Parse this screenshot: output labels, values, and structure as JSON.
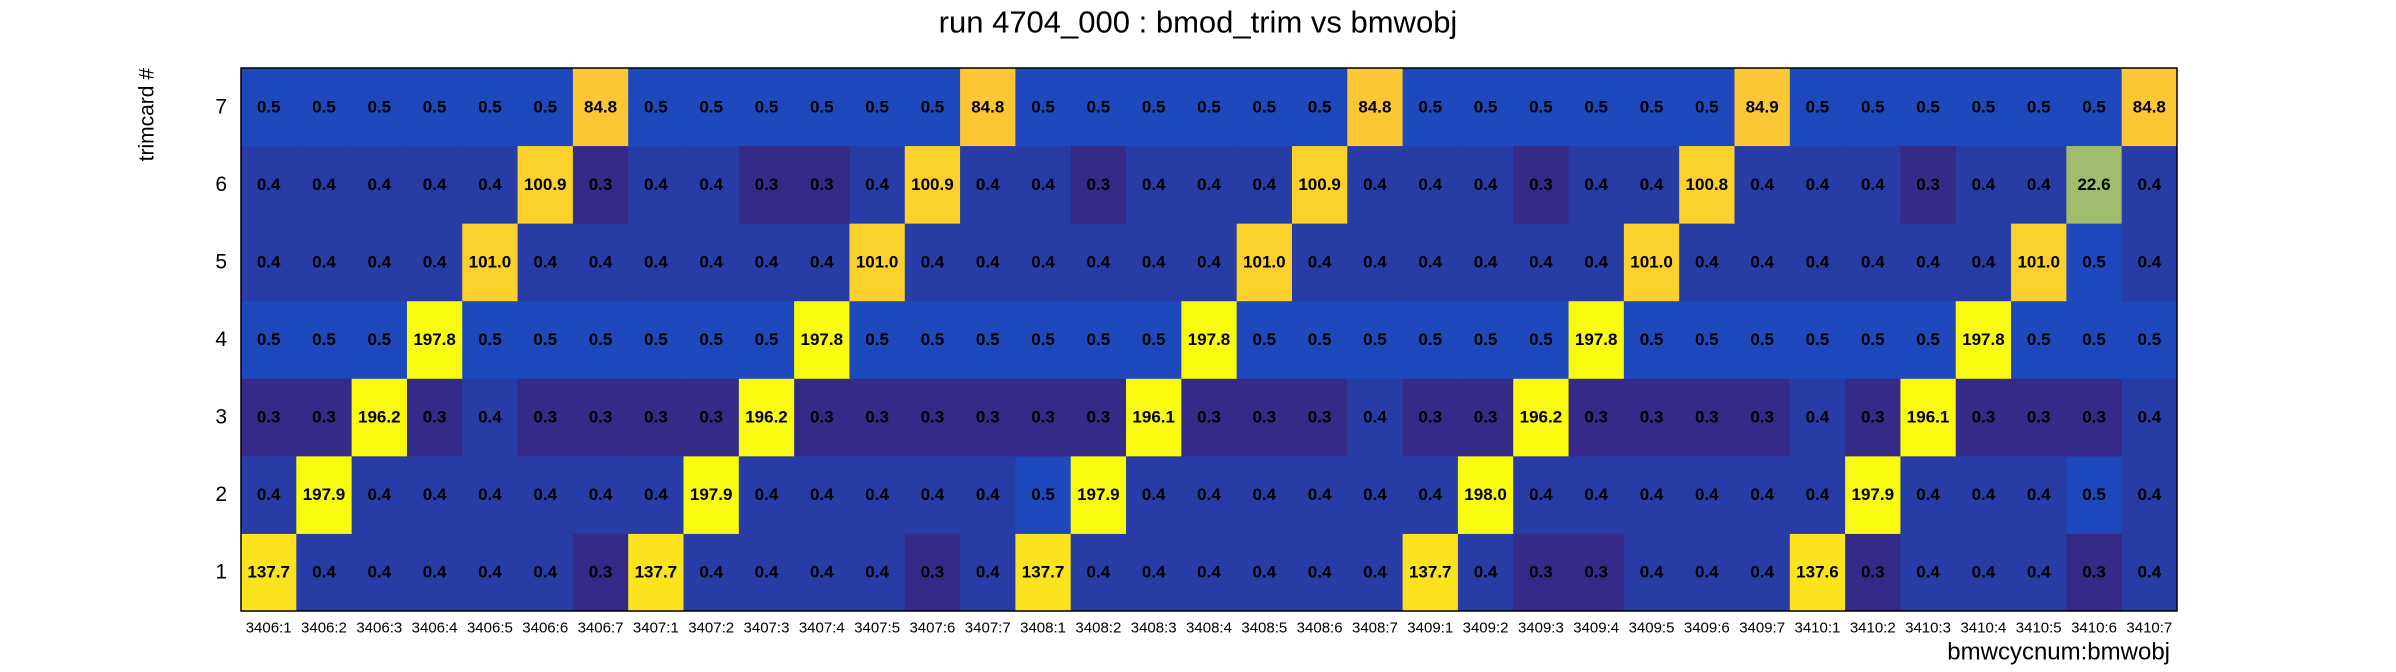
{
  "chart_data": {
    "type": "heatmap",
    "title": "run 4704_000 : bmod_trim vs bmwobj",
    "x_label": "bmwcycnum:bmwobj",
    "y_label": "trimcard #",
    "categories": [
      "3406:1",
      "3406:2",
      "3406:3",
      "3406:4",
      "3406:5",
      "3406:6",
      "3406:7",
      "3407:1",
      "3407:2",
      "3407:3",
      "3407:4",
      "3407:5",
      "3407:6",
      "3407:7",
      "3408:1",
      "3408:2",
      "3408:3",
      "3408:4",
      "3408:5",
      "3408:6",
      "3408:7",
      "3409:1",
      "3409:2",
      "3409:3",
      "3409:4",
      "3409:5",
      "3409:6",
      "3409:7",
      "3410:1",
      "3410:2",
      "3410:3",
      "3410:4",
      "3410:5",
      "3410:6",
      "3410:7"
    ],
    "y_categories": [
      "1",
      "2",
      "3",
      "4",
      "5",
      "6",
      "7"
    ],
    "values": [
      [
        137.7,
        0.4,
        0.4,
        0.4,
        0.4,
        0.4,
        0.3,
        137.7,
        0.4,
        0.4,
        0.4,
        0.4,
        0.3,
        0.4,
        137.7,
        0.4,
        0.4,
        0.4,
        0.4,
        0.4,
        0.4,
        137.7,
        0.4,
        0.3,
        0.3,
        0.4,
        0.4,
        0.4,
        137.6,
        0.3,
        0.4,
        0.4,
        0.4,
        0.3,
        0.4
      ],
      [
        0.4,
        197.9,
        0.4,
        0.4,
        0.4,
        0.4,
        0.4,
        0.4,
        197.9,
        0.4,
        0.4,
        0.4,
        0.4,
        0.4,
        0.5,
        197.9,
        0.4,
        0.4,
        0.4,
        0.4,
        0.4,
        0.4,
        198.0,
        0.4,
        0.4,
        0.4,
        0.4,
        0.4,
        0.4,
        197.9,
        0.4,
        0.4,
        0.4,
        0.5,
        0.4
      ],
      [
        0.3,
        0.3,
        196.2,
        0.3,
        0.4,
        0.3,
        0.3,
        0.3,
        0.3,
        196.2,
        0.3,
        0.3,
        0.3,
        0.3,
        0.3,
        0.3,
        196.1,
        0.3,
        0.3,
        0.3,
        0.4,
        0.3,
        0.3,
        196.2,
        0.3,
        0.3,
        0.3,
        0.3,
        0.4,
        0.3,
        196.1,
        0.3,
        0.3,
        0.3,
        0.4
      ],
      [
        0.5,
        0.5,
        0.5,
        197.8,
        0.5,
        0.5,
        0.5,
        0.5,
        0.5,
        0.5,
        197.8,
        0.5,
        0.5,
        0.5,
        0.5,
        0.5,
        0.5,
        197.8,
        0.5,
        0.5,
        0.5,
        0.5,
        0.5,
        0.5,
        197.8,
        0.5,
        0.5,
        0.5,
        0.5,
        0.5,
        0.5,
        197.8,
        0.5,
        0.5,
        0.5
      ],
      [
        0.4,
        0.4,
        0.4,
        0.4,
        101.0,
        0.4,
        0.4,
        0.4,
        0.4,
        0.4,
        0.4,
        101.0,
        0.4,
        0.4,
        0.4,
        0.4,
        0.4,
        0.4,
        101.0,
        0.4,
        0.4,
        0.4,
        0.4,
        0.4,
        0.4,
        101.0,
        0.4,
        0.4,
        0.4,
        0.4,
        0.4,
        0.4,
        101.0,
        0.5,
        0.4
      ],
      [
        0.4,
        0.4,
        0.4,
        0.4,
        0.4,
        100.9,
        0.3,
        0.4,
        0.4,
        0.3,
        0.3,
        0.4,
        100.9,
        0.4,
        0.4,
        0.3,
        0.4,
        0.4,
        0.4,
        100.9,
        0.4,
        0.4,
        0.4,
        0.3,
        0.4,
        0.4,
        100.8,
        0.4,
        0.4,
        0.4,
        0.3,
        0.4,
        0.4,
        22.6,
        0.4
      ],
      [
        0.5,
        0.5,
        0.5,
        0.5,
        0.5,
        0.5,
        84.8,
        0.5,
        0.5,
        0.5,
        0.5,
        0.5,
        0.5,
        84.8,
        0.5,
        0.5,
        0.5,
        0.5,
        0.5,
        0.5,
        84.8,
        0.5,
        0.5,
        0.5,
        0.5,
        0.5,
        0.5,
        84.9,
        0.5,
        0.5,
        0.5,
        0.5,
        0.5,
        0.5,
        84.8
      ]
    ],
    "value_labels": [
      [
        "137.7",
        "0.4",
        "0.4",
        "0.4",
        "0.4",
        "0.4",
        "0.3",
        "137.7",
        "0.4",
        "0.4",
        "0.4",
        "0.4",
        "0.3",
        "0.4",
        "137.7",
        "0.4",
        "0.4",
        "0.4",
        "0.4",
        "0.4",
        "0.4",
        "137.7",
        "0.4",
        "0.3",
        "0.3",
        "0.4",
        "0.4",
        "0.4",
        "137.6",
        "0.3",
        "0.4",
        "0.4",
        "0.4",
        "0.3",
        "0.4"
      ],
      [
        "0.4",
        "197.9",
        "0.4",
        "0.4",
        "0.4",
        "0.4",
        "0.4",
        "0.4",
        "197.9",
        "0.4",
        "0.4",
        "0.4",
        "0.4",
        "0.4",
        "0.5",
        "197.9",
        "0.4",
        "0.4",
        "0.4",
        "0.4",
        "0.4",
        "0.4",
        "198.0",
        "0.4",
        "0.4",
        "0.4",
        "0.4",
        "0.4",
        "0.4",
        "197.9",
        "0.4",
        "0.4",
        "0.4",
        "0.5",
        "0.4"
      ],
      [
        "0.3",
        "0.3",
        "196.2",
        "0.3",
        "0.4",
        "0.3",
        "0.3",
        "0.3",
        "0.3",
        "196.2",
        "0.3",
        "0.3",
        "0.3",
        "0.3",
        "0.3",
        "0.3",
        "196.1",
        "0.3",
        "0.3",
        "0.3",
        "0.4",
        "0.3",
        "0.3",
        "196.2",
        "0.3",
        "0.3",
        "0.3",
        "0.3",
        "0.4",
        "0.3",
        "196.1",
        "0.3",
        "0.3",
        "0.3",
        "0.4"
      ],
      [
        "0.5",
        "0.5",
        "0.5",
        "197.8",
        "0.5",
        "0.5",
        "0.5",
        "0.5",
        "0.5",
        "0.5",
        "197.8",
        "0.5",
        "0.5",
        "0.5",
        "0.5",
        "0.5",
        "0.5",
        "197.8",
        "0.5",
        "0.5",
        "0.5",
        "0.5",
        "0.5",
        "0.5",
        "197.8",
        "0.5",
        "0.5",
        "0.5",
        "0.5",
        "0.5",
        "0.5",
        "197.8",
        "0.5",
        "0.5",
        "0.5"
      ],
      [
        "0.4",
        "0.4",
        "0.4",
        "0.4",
        "101.0",
        "0.4",
        "0.4",
        "0.4",
        "0.4",
        "0.4",
        "0.4",
        "101.0",
        "0.4",
        "0.4",
        "0.4",
        "0.4",
        "0.4",
        "0.4",
        "101.0",
        "0.4",
        "0.4",
        "0.4",
        "0.4",
        "0.4",
        "0.4",
        "101.0",
        "0.4",
        "0.4",
        "0.4",
        "0.4",
        "0.4",
        "0.4",
        "101.0",
        "0.5",
        "0.4"
      ],
      [
        "0.4",
        "0.4",
        "0.4",
        "0.4",
        "0.4",
        "100.9",
        "0.3",
        "0.4",
        "0.4",
        "0.3",
        "0.3",
        "0.4",
        "100.9",
        "0.4",
        "0.4",
        "0.3",
        "0.4",
        "0.4",
        "0.4",
        "100.9",
        "0.4",
        "0.4",
        "0.4",
        "0.3",
        "0.4",
        "0.4",
        "100.8",
        "0.4",
        "0.4",
        "0.4",
        "0.3",
        "0.4",
        "0.4",
        "22.6",
        "0.4"
      ],
      [
        "0.5",
        "0.5",
        "0.5",
        "0.5",
        "0.5",
        "0.5",
        "84.8",
        "0.5",
        "0.5",
        "0.5",
        "0.5",
        "0.5",
        "0.5",
        "84.8",
        "0.5",
        "0.5",
        "0.5",
        "0.5",
        "0.5",
        "0.5",
        "84.8",
        "0.5",
        "0.5",
        "0.5",
        "0.5",
        "0.5",
        "0.5",
        "84.9",
        "0.5",
        "0.5",
        "0.5",
        "0.5",
        "0.5",
        "0.5",
        "84.8"
      ]
    ],
    "log_z": true,
    "zlim": [
      0.3,
      198
    ],
    "palette": [
      "#352a87",
      "#0f5cdd",
      "#1481d6",
      "#06a4ca",
      "#2eb7a4",
      "#87bf77",
      "#d1bb59",
      "#fec832",
      "#f9fb0e"
    ]
  }
}
